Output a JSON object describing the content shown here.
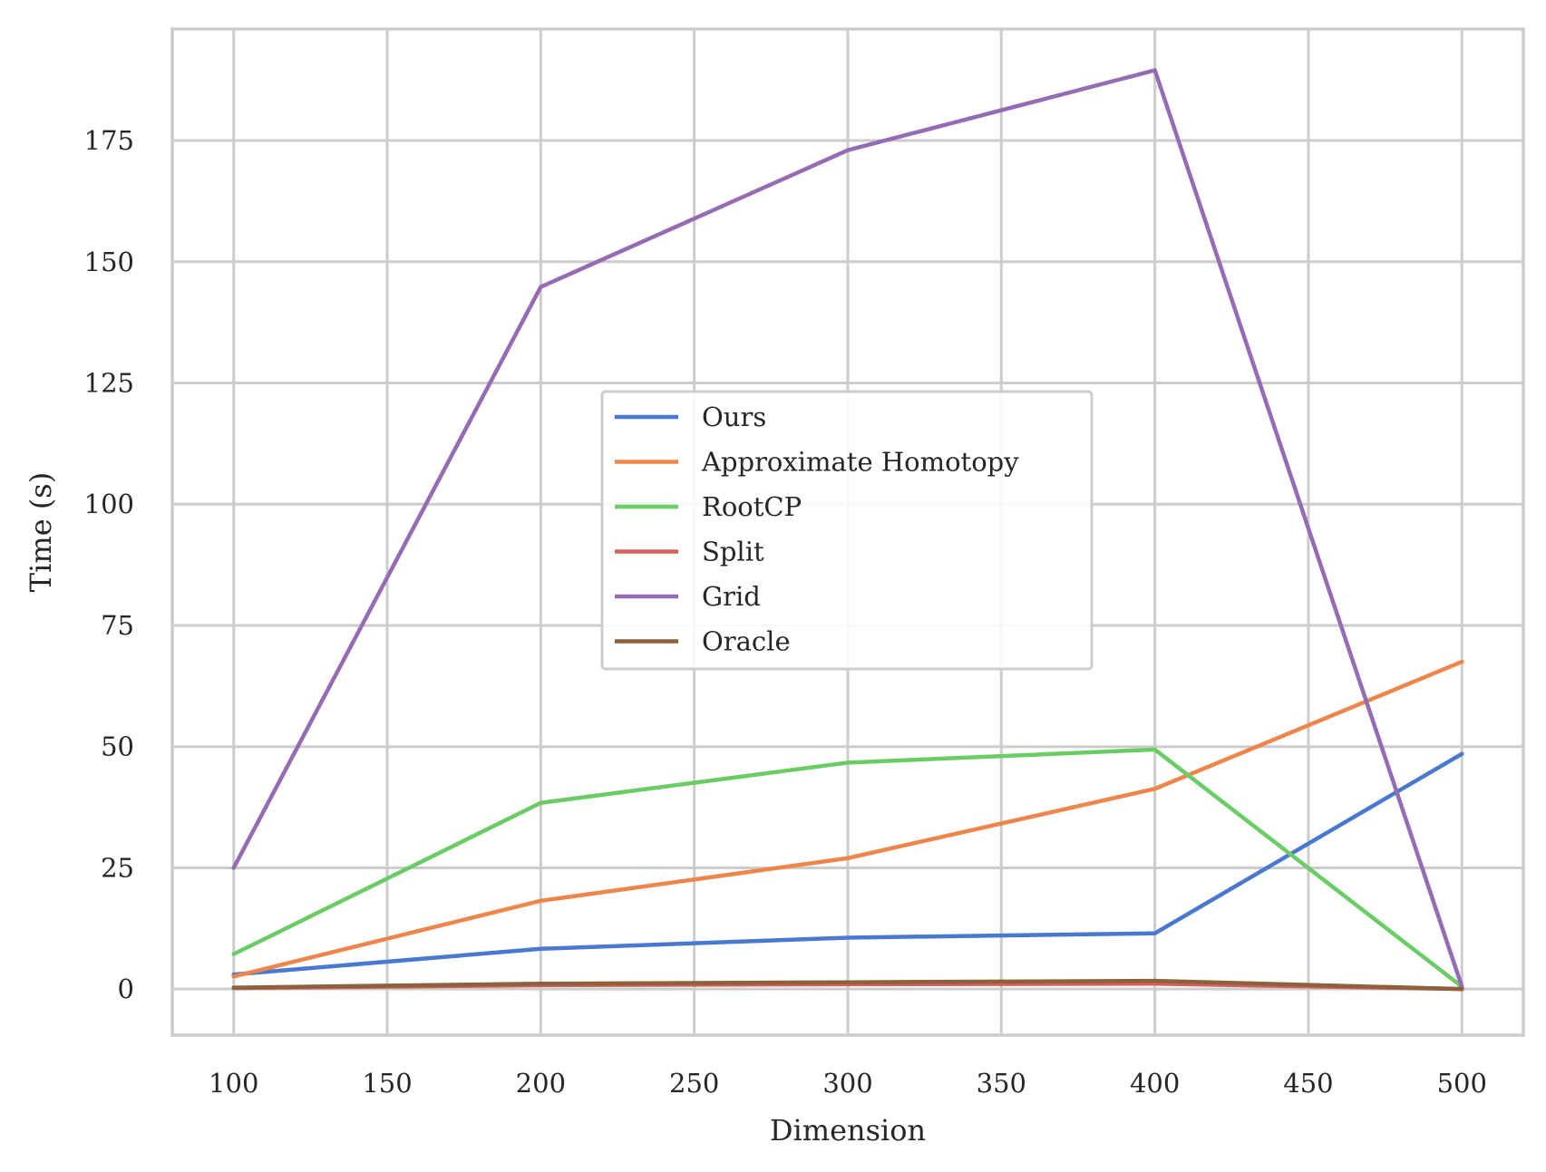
{
  "chart_data": {
    "type": "line",
    "title": "",
    "xlabel": "Dimension",
    "ylabel": "Time (s)",
    "x": [
      100,
      200,
      300,
      400,
      500
    ],
    "xlim": [
      80,
      520
    ],
    "ylim": [
      -9.5,
      198
    ],
    "xticks": [
      100,
      150,
      200,
      250,
      300,
      350,
      400,
      450,
      500
    ],
    "yticks": [
      0,
      25,
      50,
      75,
      100,
      125,
      150,
      175
    ],
    "grid": true,
    "legend_position": "center",
    "series": [
      {
        "name": "Ours",
        "color": "#4878d0",
        "values": [
          3.0,
          8.3,
          10.6,
          11.5,
          48.5
        ]
      },
      {
        "name": "Approximate Homotopy",
        "color": "#ee854a",
        "values": [
          2.6,
          18.2,
          27.0,
          41.3,
          67.5
        ]
      },
      {
        "name": "RootCP",
        "color": "#6acc64",
        "values": [
          7.2,
          38.4,
          46.7,
          49.4,
          0.5
        ]
      },
      {
        "name": "Split",
        "color": "#d65f5f",
        "values": [
          0.2,
          0.8,
          1.0,
          1.1,
          0.0
        ]
      },
      {
        "name": "Grid",
        "color": "#956cb4",
        "values": [
          25.0,
          144.8,
          173.0,
          189.5,
          0.5
        ]
      },
      {
        "name": "Oracle",
        "color": "#8c613c",
        "values": [
          0.3,
          1.1,
          1.4,
          1.7,
          0.0
        ]
      }
    ]
  }
}
